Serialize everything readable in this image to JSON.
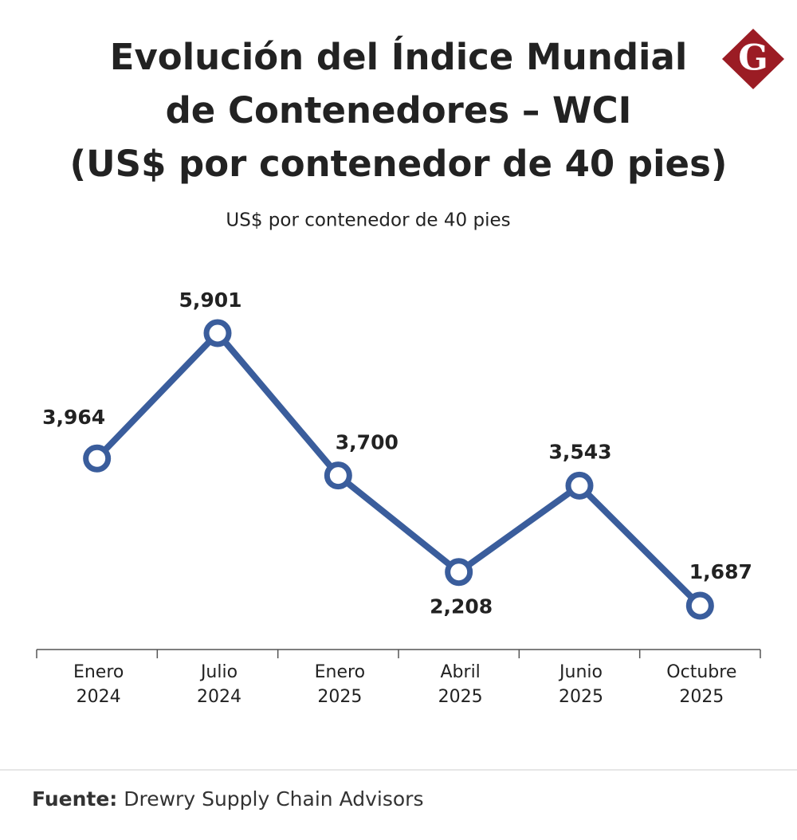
{
  "chart_data": {
    "type": "line",
    "title": [
      "Evolución del Índice Mundial",
      "de Contenedores – WCI",
      "(US$ por contenedor de 40 pies)"
    ],
    "subtitle": "US$ por contenedor de 40 pies",
    "categories": [
      "Enero 2024",
      "Julio 2024",
      "Enero 2025",
      "Abril 2025",
      "Junio 2025",
      "Octubre 2025"
    ],
    "values": [
      3964,
      5901,
      3700,
      2208,
      3543,
      1687
    ],
    "value_labels": [
      "3,964",
      "5,901",
      "3,700",
      "2,208",
      "3,543",
      "1,687"
    ],
    "color": "#3a5d9c"
  },
  "source": {
    "label": "Fuente:",
    "text": "Drewry Supply Chain Advisors"
  },
  "logo": "G"
}
